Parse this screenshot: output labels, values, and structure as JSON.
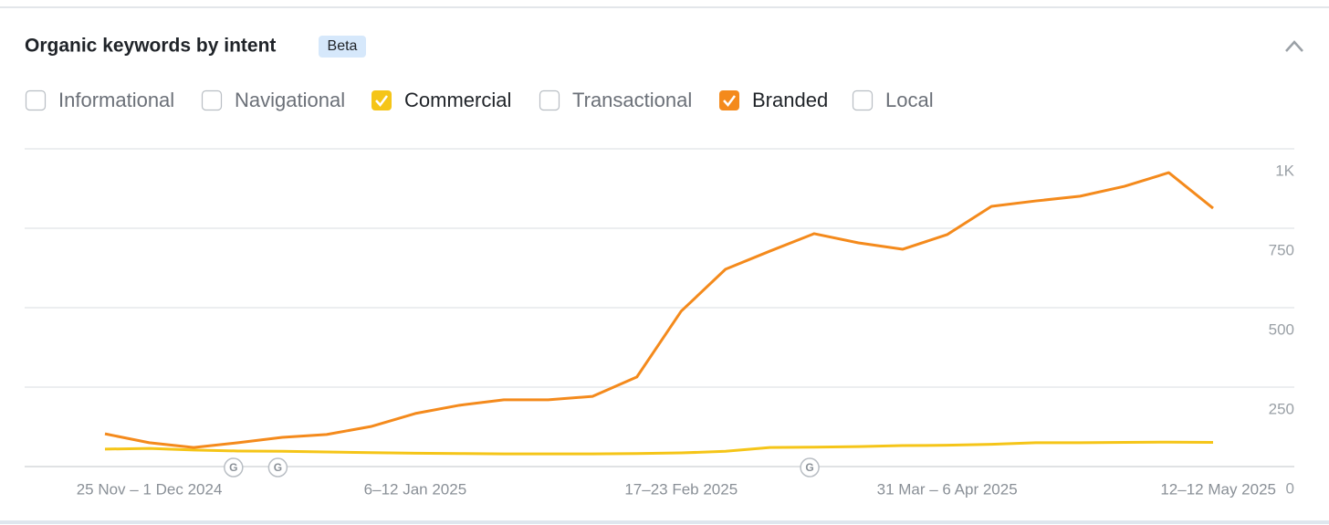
{
  "header": {
    "title": "Organic keywords by intent",
    "badge": "Beta"
  },
  "intent_filters": [
    {
      "label": "Informational",
      "checked": false
    },
    {
      "label": "Navigational",
      "checked": false
    },
    {
      "label": "Commercial",
      "checked": true,
      "color": "#f5c518"
    },
    {
      "label": "Transactional",
      "checked": false
    },
    {
      "label": "Branded",
      "checked": true,
      "color": "#f48a1c"
    },
    {
      "label": "Local",
      "checked": false
    }
  ],
  "chart_data": {
    "type": "line",
    "categories": [
      null,
      "25 Nov – 1 Dec 2024",
      null,
      null,
      null,
      null,
      null,
      "6–12 Jan 2025",
      null,
      null,
      null,
      null,
      null,
      "17–23 Feb 2025",
      null,
      null,
      null,
      null,
      null,
      "31 Mar – 6 Apr 2025",
      null,
      null,
      null,
      null,
      null,
      "12–12 May 2025"
    ],
    "series": [
      {
        "color": "#f48a1c",
        "values": [
          103,
          75,
          60,
          75,
          92,
          101,
          126,
          167,
          193,
          210,
          210,
          221,
          282,
          489,
          621,
          678,
          733,
          704,
          684,
          730,
          819,
          836,
          851,
          882,
          925,
          813
        ]
      },
      {
        "color": "#f5c518",
        "values": [
          55,
          57,
          52,
          49,
          48,
          46,
          44,
          42,
          41,
          40,
          40,
          40,
          41,
          43,
          48,
          60,
          61,
          63,
          66,
          67,
          70,
          75,
          75,
          76,
          77,
          76
        ]
      }
    ],
    "ylim": [
      0,
      1000
    ],
    "yticks": [
      0,
      250,
      500,
      750,
      {
        "value": 1000,
        "label": "1K"
      }
    ],
    "grid": true,
    "annotations": [
      "G",
      "G",
      "G"
    ]
  }
}
